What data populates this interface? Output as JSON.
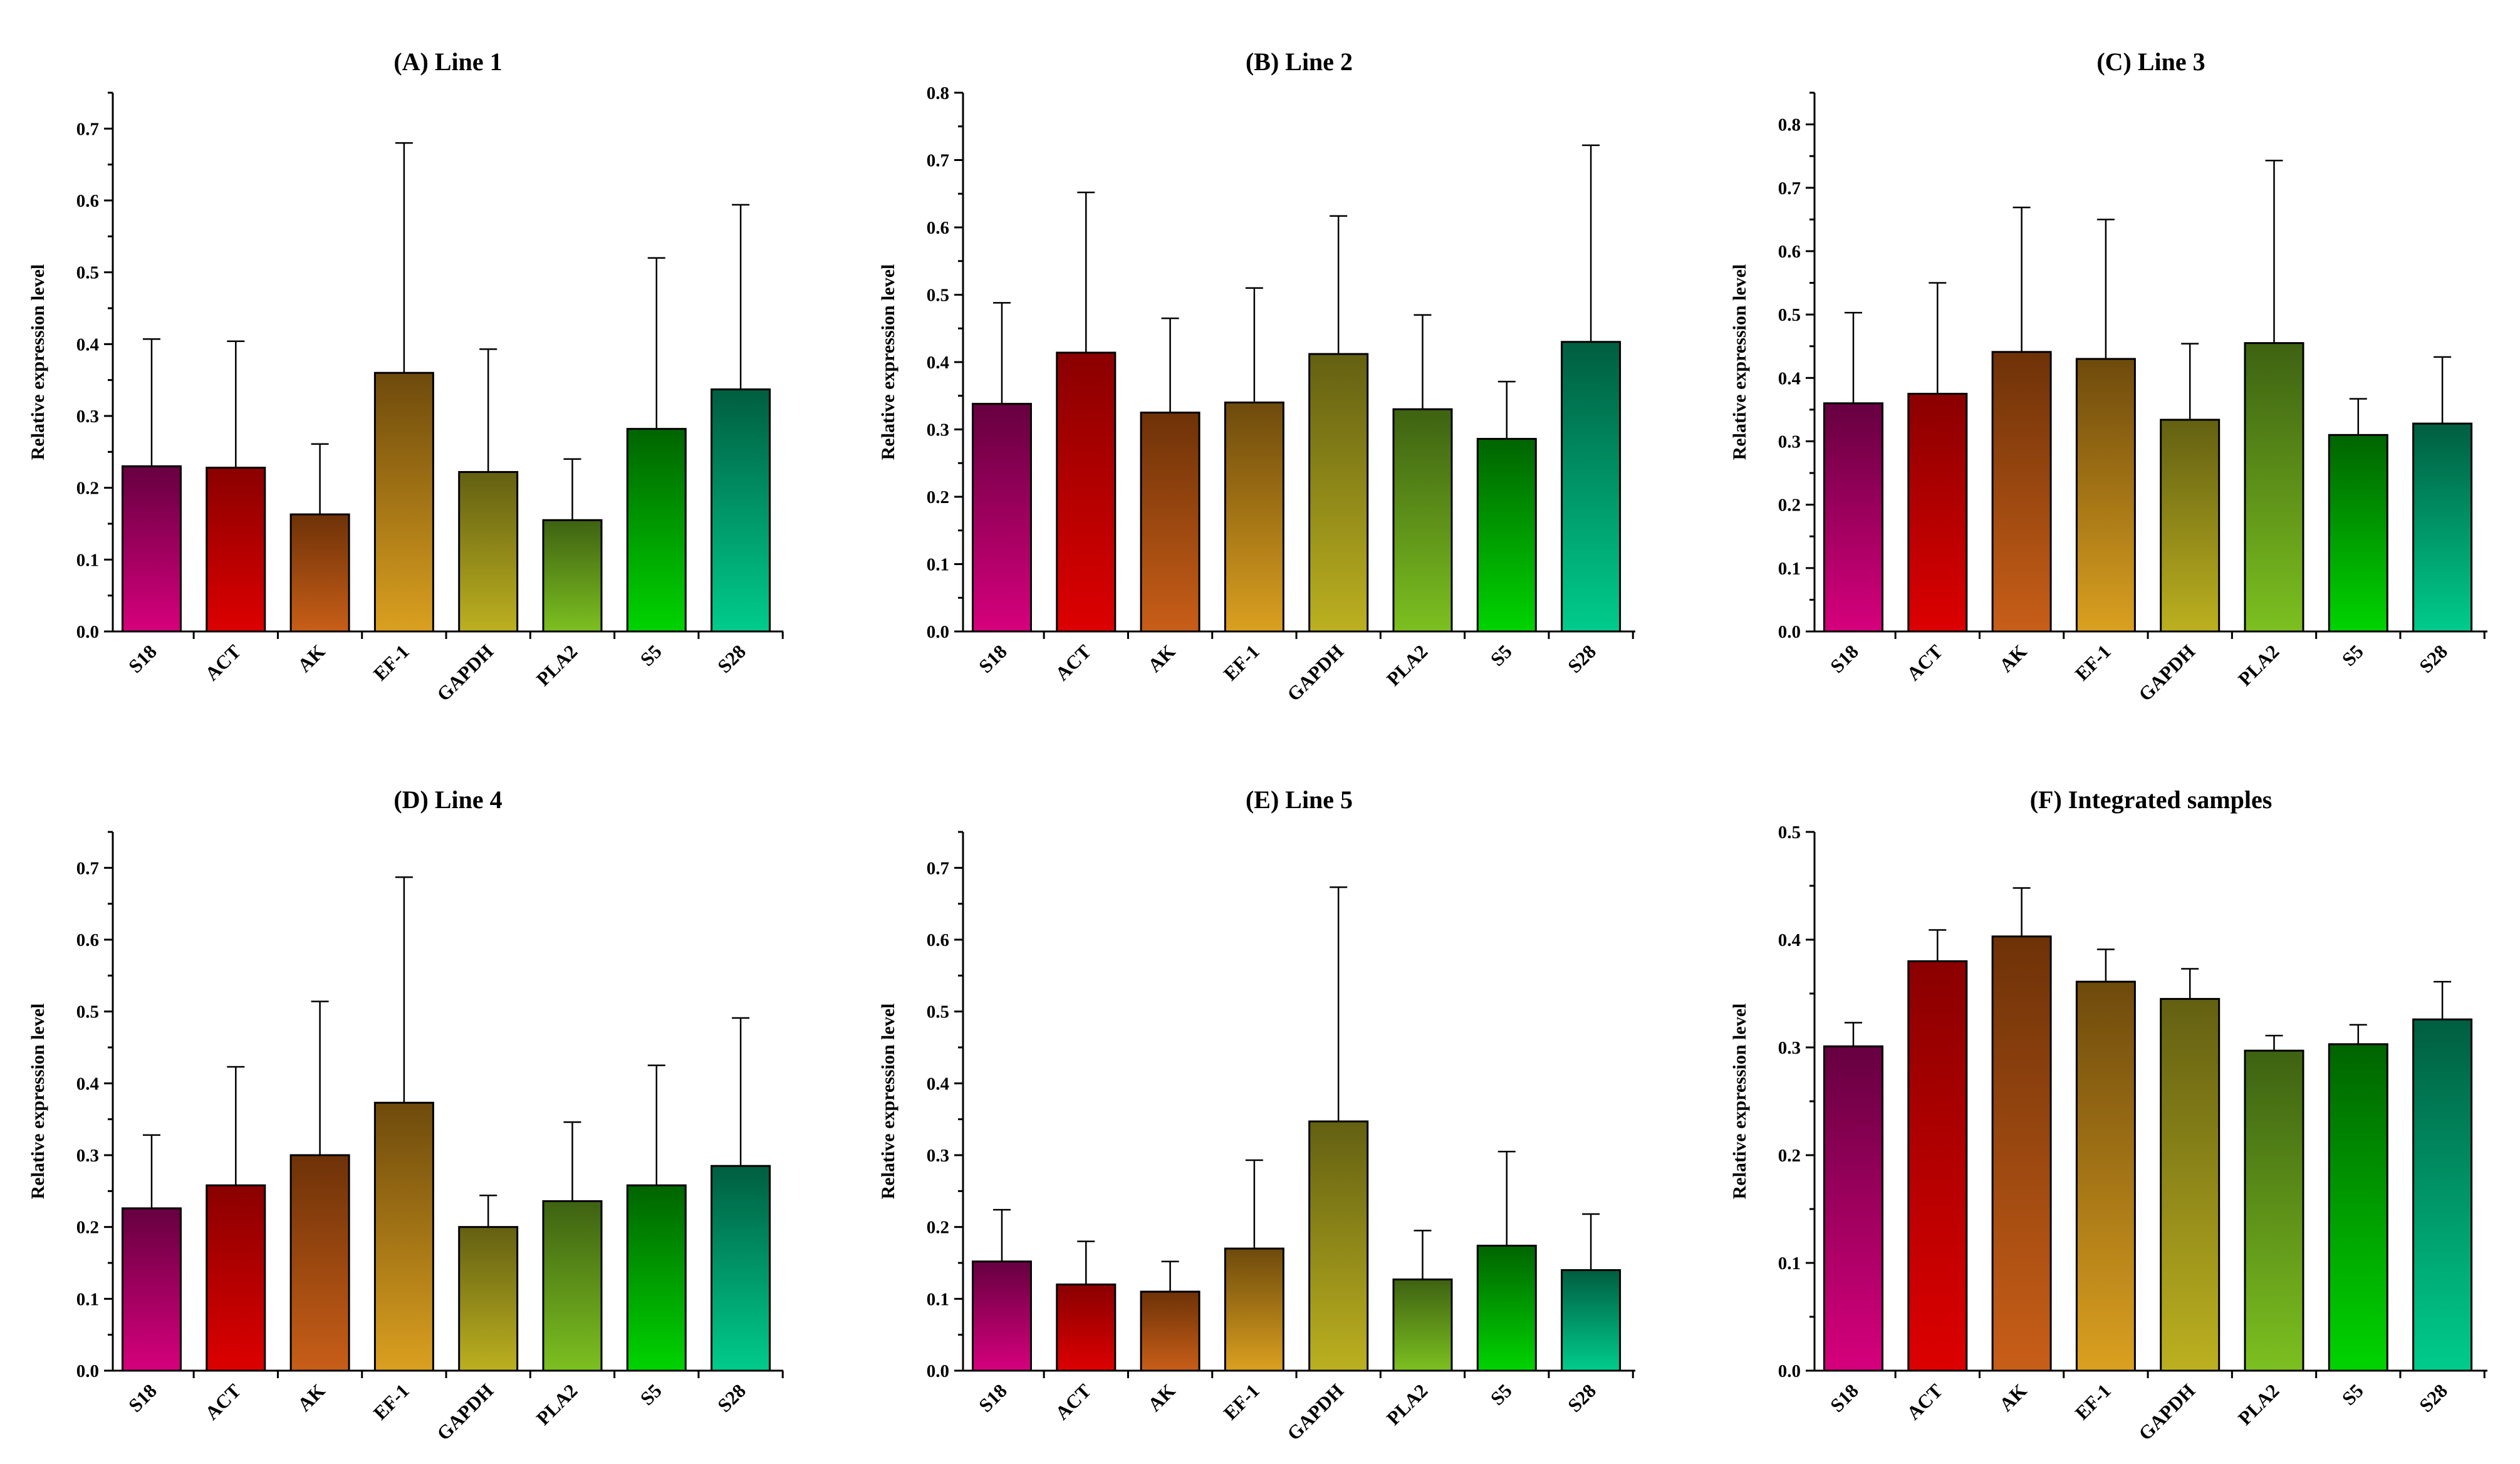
{
  "bar_colors": [
    {
      "top": "#660040",
      "bottom": "#d6007c"
    },
    {
      "top": "#8a0000",
      "bottom": "#dd0000"
    },
    {
      "top": "#6e3208",
      "bottom": "#c85e18"
    },
    {
      "top": "#6e4a0c",
      "bottom": "#daa020"
    },
    {
      "top": "#636012",
      "bottom": "#bcb020"
    },
    {
      "top": "#3e6212",
      "bottom": "#7cc020"
    },
    {
      "top": "#006400",
      "bottom": "#00d400"
    },
    {
      "top": "#005e40",
      "bottom": "#00cc8c"
    }
  ],
  "chart_data": [
    {
      "type": "bar",
      "title": "(A) Line 1",
      "ylabel": "Relative expression level",
      "ylim": [
        0,
        0.75
      ],
      "yticks": [
        "0.0",
        "0.1",
        "0.2",
        "0.3",
        "0.4",
        "0.5",
        "0.6",
        "0.7"
      ],
      "categories": [
        "S18",
        "ACT",
        "AK",
        "EF-1",
        "GAPDH",
        "PLA2",
        "S5",
        "S28"
      ],
      "values": [
        0.23,
        0.228,
        0.163,
        0.36,
        0.222,
        0.155,
        0.282,
        0.337
      ],
      "errors": [
        0.177,
        0.176,
        0.098,
        0.32,
        0.171,
        0.085,
        0.238,
        0.257
      ],
      "legend": "none",
      "grid": false
    },
    {
      "type": "bar",
      "title": "(B) Line 2",
      "ylabel": "Relative expression level",
      "ylim": [
        0,
        0.8
      ],
      "yticks": [
        "0.0",
        "0.1",
        "0.2",
        "0.3",
        "0.4",
        "0.5",
        "0.6",
        "0.7",
        "0.8"
      ],
      "categories": [
        "S18",
        "ACT",
        "AK",
        "EF-1",
        "GAPDH",
        "PLA2",
        "S5",
        "S28"
      ],
      "values": [
        0.338,
        0.414,
        0.325,
        0.34,
        0.412,
        0.33,
        0.286,
        0.43
      ],
      "errors": [
        0.15,
        0.238,
        0.14,
        0.17,
        0.205,
        0.14,
        0.085,
        0.292
      ],
      "legend": "none",
      "grid": false
    },
    {
      "type": "bar",
      "title": "(C) Line 3",
      "ylabel": "Relative expression level",
      "ylim": [
        0,
        0.85
      ],
      "yticks": [
        "0.0",
        "0.1",
        "0.2",
        "0.3",
        "0.4",
        "0.5",
        "0.6",
        "0.7",
        "0.8"
      ],
      "categories": [
        "S18",
        "ACT",
        "AK",
        "EF-1",
        "GAPDH",
        "PLA2",
        "S5",
        "S28"
      ],
      "values": [
        0.36,
        0.375,
        0.441,
        0.43,
        0.334,
        0.455,
        0.31,
        0.328
      ],
      "errors": [
        0.143,
        0.175,
        0.228,
        0.22,
        0.12,
        0.288,
        0.057,
        0.105
      ],
      "legend": "none",
      "grid": false
    },
    {
      "type": "bar",
      "title": "(D) Line 4",
      "ylabel": "Relative expression level",
      "ylim": [
        0,
        0.75
      ],
      "yticks": [
        "0.0",
        "0.1",
        "0.2",
        "0.3",
        "0.4",
        "0.5",
        "0.6",
        "0.7"
      ],
      "categories": [
        "S18",
        "ACT",
        "AK",
        "EF-1",
        "GAPDH",
        "PLA2",
        "S5",
        "S28"
      ],
      "values": [
        0.226,
        0.258,
        0.3,
        0.373,
        0.2,
        0.236,
        0.258,
        0.285
      ],
      "errors": [
        0.102,
        0.165,
        0.214,
        0.314,
        0.044,
        0.11,
        0.167,
        0.206
      ],
      "legend": "none",
      "grid": false
    },
    {
      "type": "bar",
      "title": "(E) Line 5",
      "ylabel": "Relative expression level",
      "ylim": [
        0,
        0.75
      ],
      "yticks": [
        "0.0",
        "0.1",
        "0.2",
        "0.3",
        "0.4",
        "0.5",
        "0.6",
        "0.7"
      ],
      "categories": [
        "S18",
        "ACT",
        "AK",
        "EF-1",
        "GAPDH",
        "PLA2",
        "S5",
        "S28"
      ],
      "values": [
        0.152,
        0.12,
        0.11,
        0.17,
        0.347,
        0.127,
        0.174,
        0.14
      ],
      "errors": [
        0.072,
        0.06,
        0.042,
        0.123,
        0.326,
        0.068,
        0.131,
        0.078
      ],
      "legend": "none",
      "grid": false
    },
    {
      "type": "bar",
      "title": "(F) Integrated samples",
      "ylabel": "Relative expression level",
      "ylim": [
        0,
        0.5
      ],
      "yticks": [
        "0.0",
        "0.1",
        "0.2",
        "0.3",
        "0.4",
        "0.5"
      ],
      "categories": [
        "S18",
        "ACT",
        "AK",
        "EF-1",
        "GAPDH",
        "PLA2",
        "S5",
        "S28"
      ],
      "values": [
        0.301,
        0.38,
        0.403,
        0.361,
        0.345,
        0.297,
        0.303,
        0.326
      ],
      "errors": [
        0.022,
        0.029,
        0.045,
        0.03,
        0.028,
        0.014,
        0.018,
        0.035
      ],
      "legend": "none",
      "grid": false
    }
  ]
}
